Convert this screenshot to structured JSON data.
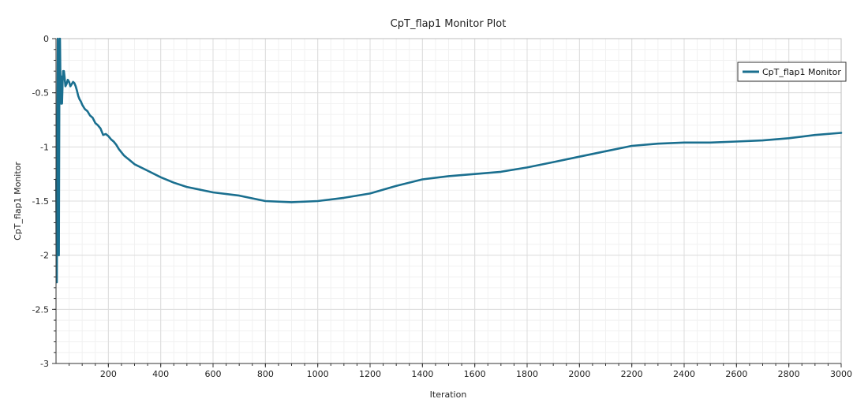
{
  "chart_data": {
    "type": "line",
    "title": "CpT_flap1 Monitor Plot",
    "xlabel": "Iteration",
    "ylabel": "CpT_flap1 Monitor",
    "xlim": [
      0,
      3000
    ],
    "ylim": [
      -3,
      0
    ],
    "xticks": [
      200,
      400,
      600,
      800,
      1000,
      1200,
      1400,
      1600,
      1800,
      2000,
      2200,
      2400,
      2600,
      2800,
      3000
    ],
    "yticks": [
      0,
      -0.5,
      -1,
      -1.5,
      -2,
      -2.5,
      -3
    ],
    "grid": true,
    "legend_position": "top-right",
    "series": [
      {
        "name": "CpT_flap1 Monitor",
        "color": "#1a6f8f",
        "x": [
          1,
          3,
          5,
          7,
          9,
          11,
          13,
          15,
          17,
          19,
          21,
          23,
          25,
          27,
          30,
          33,
          36,
          40,
          45,
          50,
          55,
          60,
          65,
          70,
          75,
          80,
          85,
          90,
          95,
          100,
          105,
          110,
          115,
          120,
          130,
          140,
          150,
          160,
          170,
          180,
          190,
          200,
          210,
          220,
          230,
          240,
          250,
          260,
          270,
          280,
          300,
          350,
          400,
          450,
          500,
          600,
          700,
          800,
          900,
          1000,
          1100,
          1150,
          1200,
          1300,
          1400,
          1500,
          1600,
          1700,
          1800,
          1900,
          2000,
          2100,
          2200,
          2300,
          2400,
          2500,
          2600,
          2700,
          2800,
          2900,
          3000
        ],
        "y": [
          -1.3,
          -2.25,
          -0.9,
          0.0,
          -0.5,
          -2.0,
          -0.3,
          0.0,
          -0.4,
          -0.6,
          -0.35,
          -0.6,
          -0.42,
          -0.3,
          -0.3,
          -0.36,
          -0.44,
          -0.42,
          -0.38,
          -0.4,
          -0.44,
          -0.42,
          -0.4,
          -0.41,
          -0.44,
          -0.48,
          -0.53,
          -0.56,
          -0.58,
          -0.61,
          -0.63,
          -0.65,
          -0.66,
          -0.67,
          -0.71,
          -0.73,
          -0.78,
          -0.8,
          -0.83,
          -0.89,
          -0.88,
          -0.9,
          -0.93,
          -0.95,
          -0.98,
          -1.02,
          -1.05,
          -1.08,
          -1.1,
          -1.12,
          -1.16,
          -1.22,
          -1.28,
          -1.33,
          -1.37,
          -1.42,
          -1.45,
          -1.5,
          -1.51,
          -1.5,
          -1.47,
          -1.45,
          -1.43,
          -1.36,
          -1.3,
          -1.27,
          -1.25,
          -1.23,
          -1.19,
          -1.14,
          -1.09,
          -1.04,
          -0.99,
          -0.97,
          -0.96,
          -0.96,
          -0.95,
          -0.94,
          -0.92,
          -0.89,
          -0.87
        ]
      }
    ]
  }
}
